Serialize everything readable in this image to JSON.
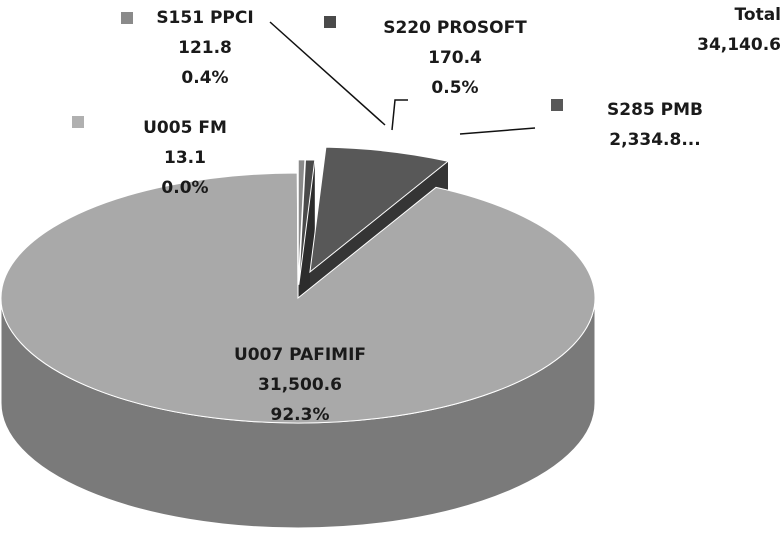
{
  "chart_data": {
    "type": "pie",
    "categories": [
      "S151 PPCI",
      "S220 PROSOFT",
      "S285 PMB",
      "U007 PAFIMIF",
      "U005 FM"
    ],
    "values": [
      121.8,
      170.4,
      2334.8,
      31500.6,
      13.1
    ],
    "value_labels": [
      "121.8",
      "170.4",
      "2,334.8...",
      "31,500.6",
      "13.1"
    ],
    "percent_labels": [
      "0.4%",
      "0.5%",
      null,
      "92.3%",
      "0.0%"
    ],
    "colors": [
      "#8a8a8a",
      "#4a4a4a",
      "#585858",
      "#a9a9a9",
      "#b0b0b0"
    ],
    "total_label": "Total",
    "total_value": "34,140.6"
  }
}
